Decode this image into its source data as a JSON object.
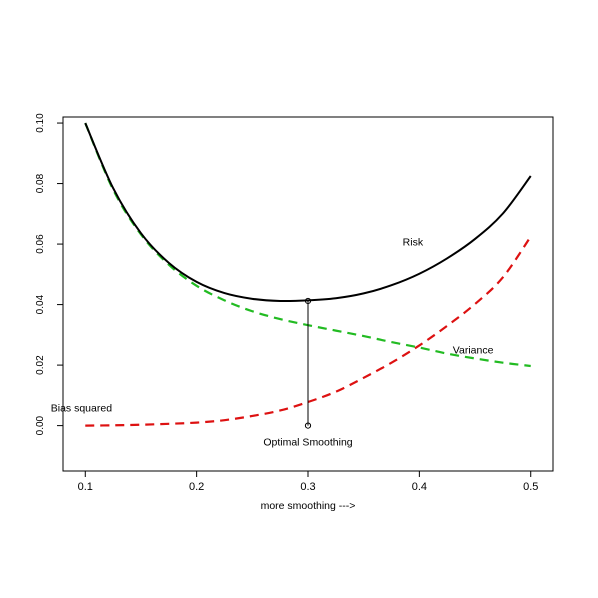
{
  "chart_data": {
    "type": "line",
    "title": "",
    "xlabel": "more smoothing --->",
    "ylabel": "",
    "xlim": [
      0.08,
      0.52
    ],
    "ylim": [
      -0.015,
      0.102
    ],
    "grid": false,
    "x_ticks": [
      0.1,
      0.2,
      0.3,
      0.4,
      0.5
    ],
    "x_tick_labels": [
      "0.1",
      "0.2",
      "0.3",
      "0.4",
      "0.5"
    ],
    "y_ticks": [
      0.0,
      0.02,
      0.04,
      0.06,
      0.08,
      0.1
    ],
    "y_tick_labels": [
      "0.00",
      "0.02",
      "0.04",
      "0.06",
      "0.08",
      "0.10"
    ],
    "series": [
      {
        "name": "Risk",
        "color": "#000000",
        "style": "solid",
        "x": [
          0.1,
          0.125,
          0.15,
          0.175,
          0.2,
          0.225,
          0.25,
          0.275,
          0.3,
          0.325,
          0.35,
          0.375,
          0.4,
          0.425,
          0.45,
          0.475,
          0.5
        ],
        "y": [
          0.1,
          0.0785,
          0.0636,
          0.0538,
          0.0475,
          0.0438,
          0.0419,
          0.0412,
          0.0414,
          0.0421,
          0.0437,
          0.0464,
          0.0502,
          0.0553,
          0.0617,
          0.0701,
          0.0825
        ]
      },
      {
        "name": "Variance",
        "color": "#22bb22",
        "style": "dashed",
        "x": [
          0.1,
          0.125,
          0.15,
          0.175,
          0.2,
          0.225,
          0.25,
          0.275,
          0.3,
          0.325,
          0.35,
          0.375,
          0.4,
          0.425,
          0.45,
          0.475,
          0.5
        ],
        "y": [
          0.1,
          0.078,
          0.0632,
          0.0532,
          0.0462,
          0.0414,
          0.0378,
          0.0352,
          0.0332,
          0.0314,
          0.0296,
          0.0276,
          0.0258,
          0.0238,
          0.0222,
          0.0208,
          0.0197
        ]
      },
      {
        "name": "Bias squared",
        "color": "#dd1111",
        "style": "dashed",
        "x": [
          0.1,
          0.125,
          0.15,
          0.175,
          0.2,
          0.225,
          0.25,
          0.275,
          0.3,
          0.325,
          0.35,
          0.375,
          0.4,
          0.425,
          0.45,
          0.475,
          0.5
        ],
        "y": [
          0.0,
          0.0001,
          0.0003,
          0.0006,
          0.001,
          0.0018,
          0.0032,
          0.005,
          0.0078,
          0.0112,
          0.0158,
          0.0208,
          0.0265,
          0.033,
          0.0402,
          0.049,
          0.0625
        ]
      }
    ],
    "annotations": [
      {
        "text": "Risk",
        "x": 0.385,
        "y": 0.0595
      },
      {
        "text": "Variance",
        "x": 0.43,
        "y": 0.0238
      },
      {
        "text": "Bias squared",
        "x": 0.069,
        "y": 0.0047
      },
      {
        "text": "Optimal Smoothing",
        "x": 0.3,
        "y": -0.0065
      }
    ],
    "optimal": {
      "x": 0.3,
      "y_top": 0.0412,
      "y_bottom": 0.0
    }
  }
}
